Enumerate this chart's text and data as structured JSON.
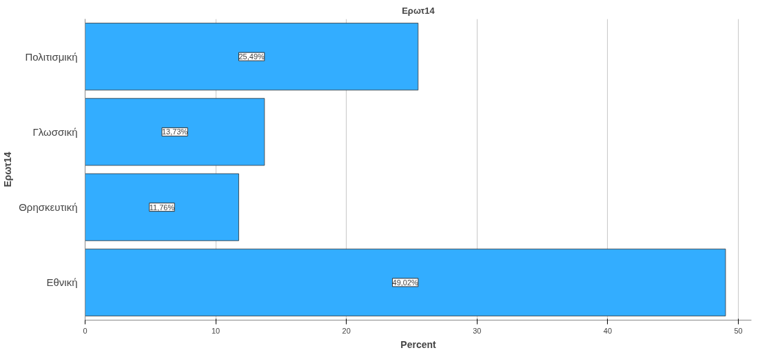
{
  "chart_data": {
    "type": "bar",
    "orientation": "horizontal",
    "title": "Ερωτ14",
    "xlabel": "Percent",
    "ylabel": "Ερωτ14",
    "categories": [
      "Πολιτισμική",
      "Γλωσσική",
      "Θρησκευτική",
      "Εθνική"
    ],
    "values": [
      25.49,
      13.73,
      11.76,
      49.02
    ],
    "value_labels": [
      "25,49%",
      "13,73%",
      "11,76%",
      "49,02%"
    ],
    "color": "#33adff",
    "xlim": [
      0,
      51
    ],
    "xticks": [
      0,
      10,
      20,
      30,
      40,
      50
    ],
    "grid": "x"
  }
}
